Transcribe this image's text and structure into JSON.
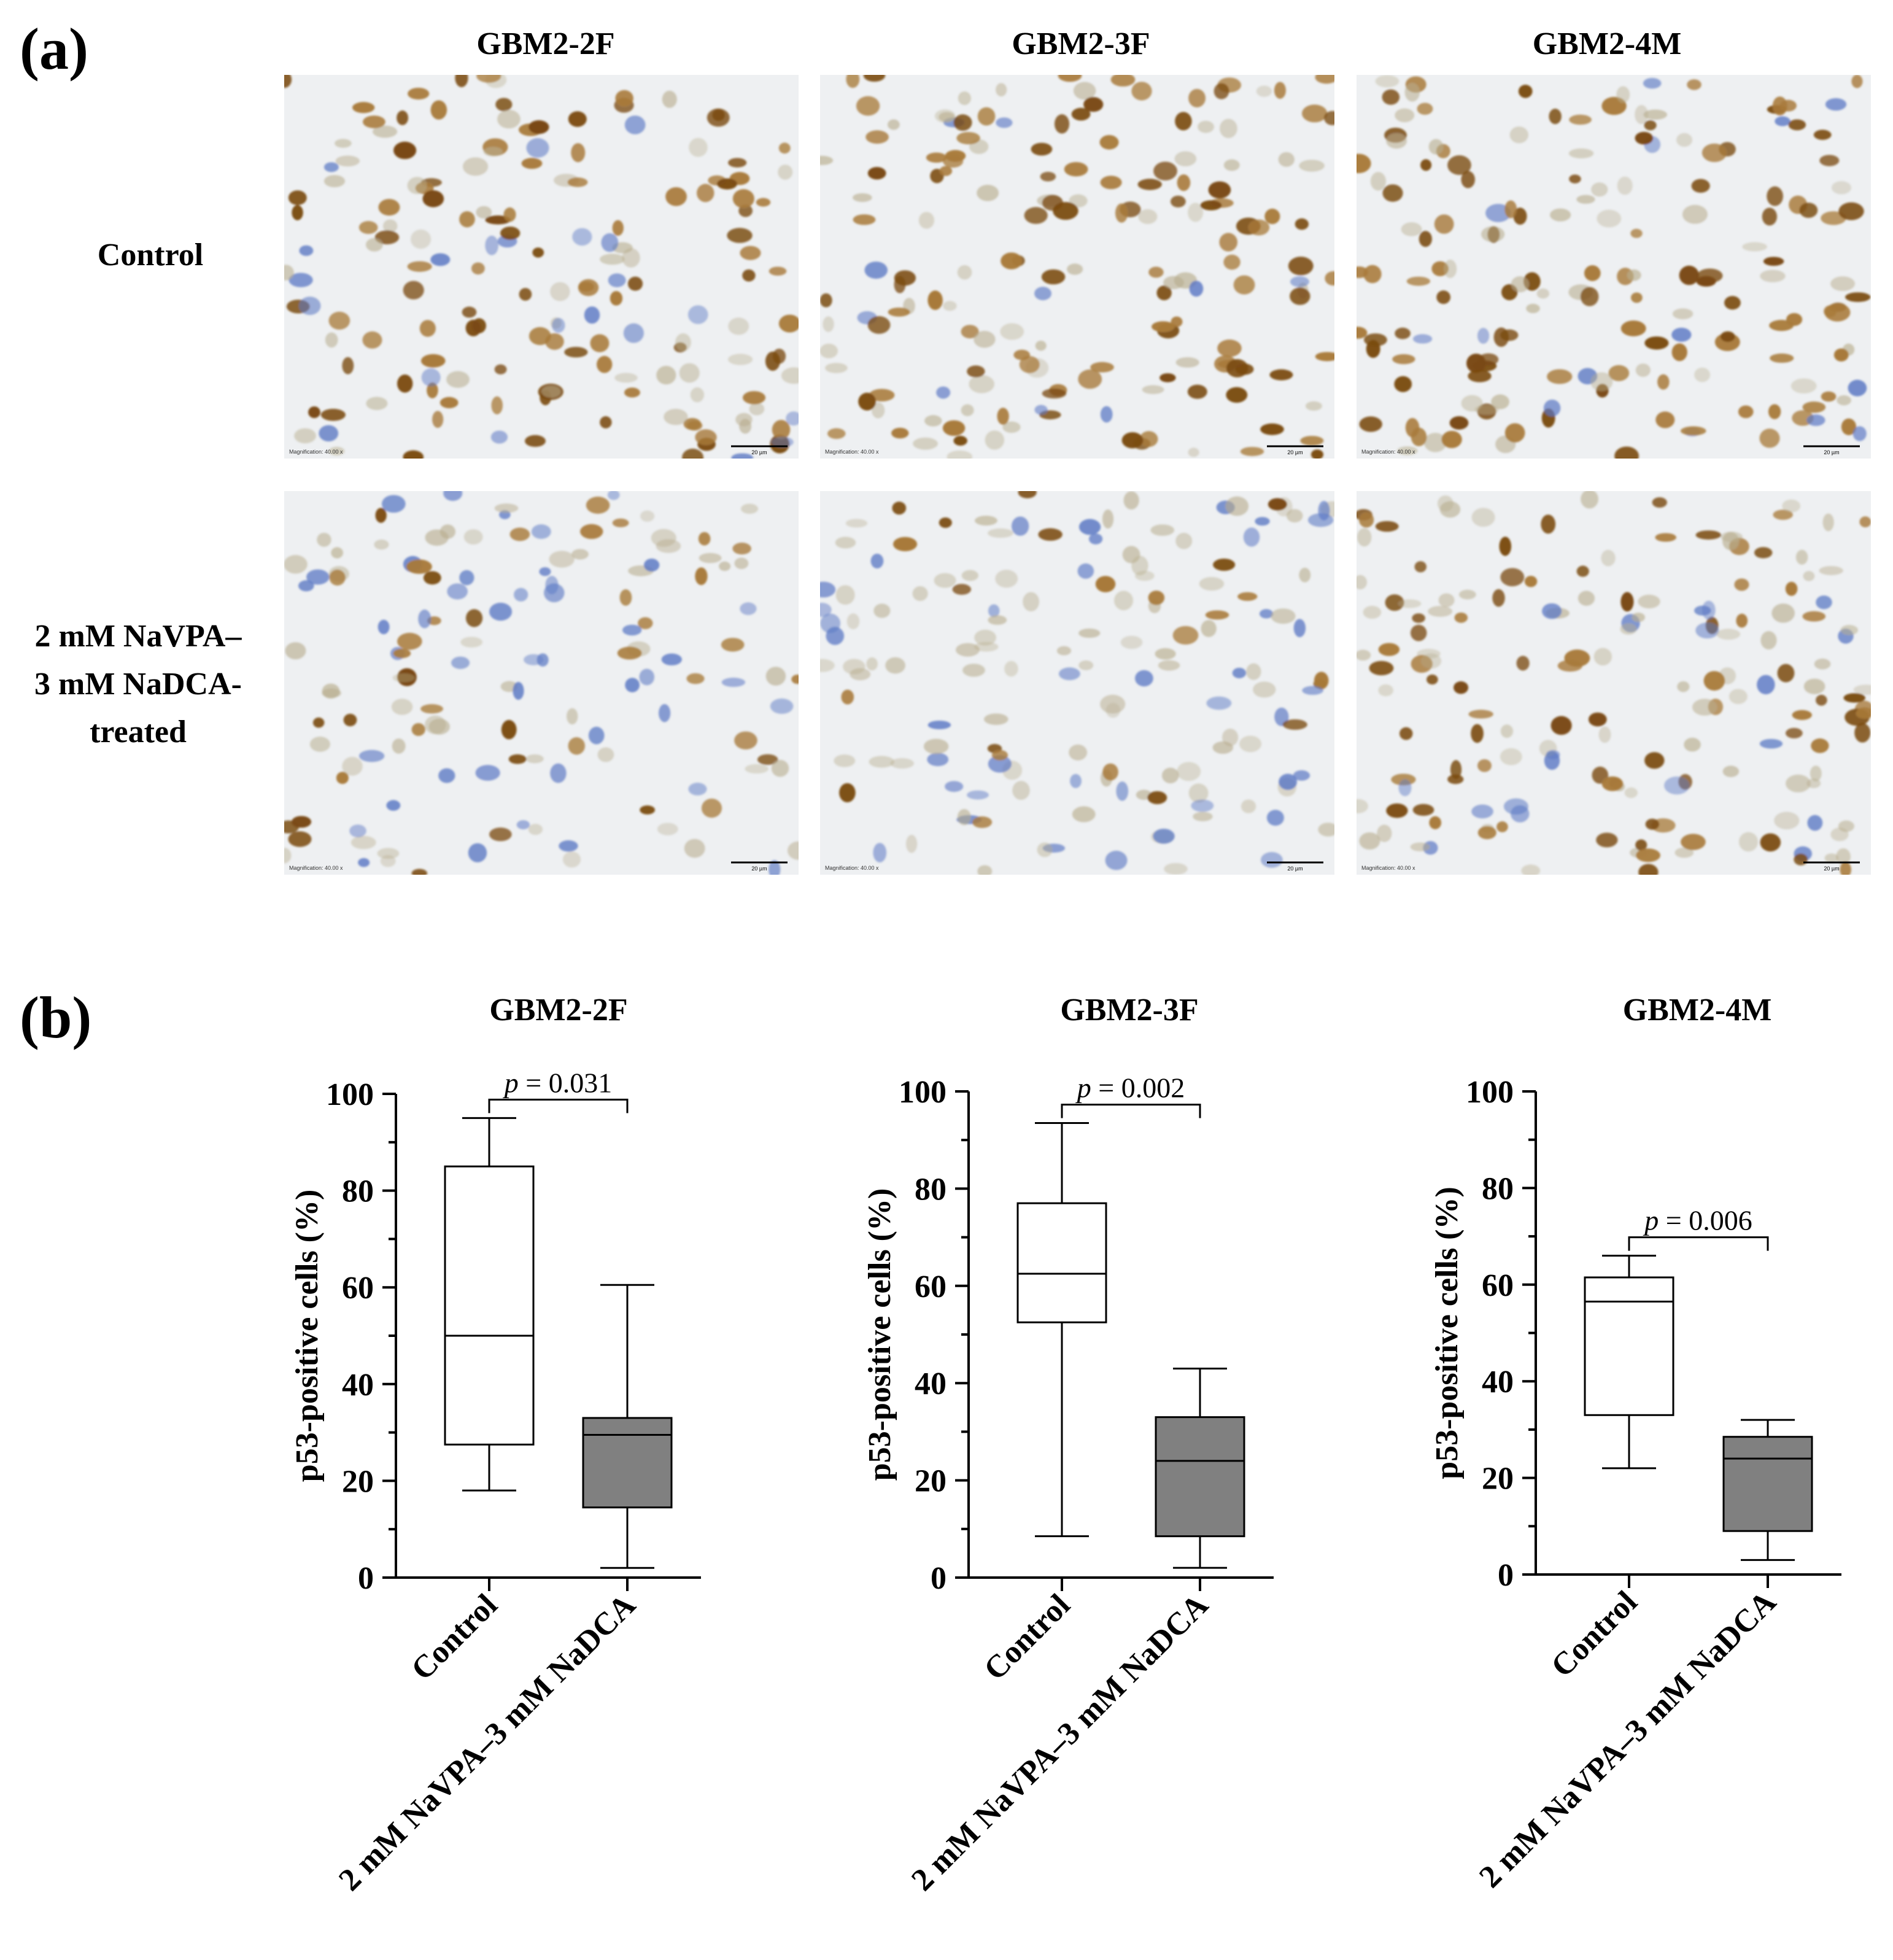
{
  "panel_a": {
    "label": "(a)",
    "columns": [
      "GBM2-2F",
      "GBM2-3F",
      "GBM2-4M"
    ],
    "rows": [
      {
        "lines": [
          "Control"
        ]
      },
      {
        "lines": [
          "2 mM NaVPA–",
          "3 mM NaDCA-",
          "treated"
        ]
      }
    ],
    "micrographs": [
      {
        "magnification": "Magnification: 40.00 x",
        "scalebar": "20 µm",
        "staining": "heavy"
      },
      {
        "magnification": "Magnification: 40.00 x",
        "scalebar": "20 µm",
        "staining": "heavy"
      },
      {
        "magnification": "Magnification: 40.00 x",
        "scalebar": "20 µm",
        "staining": "heavy"
      },
      {
        "magnification": "Magnification: 40.00 x",
        "scalebar": "20 µm",
        "staining": "light-blue"
      },
      {
        "magnification": "Magnification: 40.00 x",
        "scalebar": "20 µm",
        "staining": "faint"
      },
      {
        "magnification": "Magnification: 40.00 x",
        "scalebar": "20 µm",
        "staining": "medium"
      }
    ],
    "colors": {
      "background": "#eef0f2",
      "brown": "#7a4a12",
      "blue": "#5b78c4"
    }
  },
  "panel_b": {
    "label": "(b)"
  },
  "chart_data": [
    {
      "type": "box",
      "title": "GBM2-2F",
      "ylabel": "p53-positive cells (%)",
      "ylim": [
        0,
        100
      ],
      "yticks": [
        "0",
        "20",
        "40",
        "60",
        "80",
        "100"
      ],
      "categories": [
        "Control",
        "2 mM NaVPA–3 mM NaDCA"
      ],
      "boxes": [
        {
          "min": 18,
          "q1": 27.5,
          "median": 50,
          "q3": 85,
          "max": 95,
          "fill": "#ffffff"
        },
        {
          "min": 2,
          "q1": 14.5,
          "median": 29.5,
          "q3": 33,
          "max": 60.5,
          "fill": "#808080"
        }
      ],
      "annotation": {
        "p": "p",
        "value": " = 0.031"
      }
    },
    {
      "type": "box",
      "title": "GBM2-3F",
      "ylabel": "p53-positive cells (%)",
      "ylim": [
        0,
        100
      ],
      "yticks": [
        "0",
        "20",
        "40",
        "60",
        "80",
        "100"
      ],
      "categories": [
        "Control",
        "2 mM NaVPA–3 mM NaDCA"
      ],
      "boxes": [
        {
          "min": 8.5,
          "q1": 52.5,
          "median": 62.5,
          "q3": 77,
          "max": 93.5,
          "fill": "#ffffff"
        },
        {
          "min": 2,
          "q1": 8.5,
          "median": 24,
          "q3": 33,
          "max": 43,
          "fill": "#808080"
        }
      ],
      "annotation": {
        "p": "p",
        "value": " = 0.002"
      }
    },
    {
      "type": "box",
      "title": "GBM2-4M",
      "ylabel": "p53-positive cells (%)",
      "ylim": [
        0,
        100
      ],
      "yticks": [
        "0",
        "20",
        "40",
        "60",
        "80",
        "100"
      ],
      "categories": [
        "Control",
        "2 mM NaVPA–3 mM NaDCA"
      ],
      "boxes": [
        {
          "min": 22,
          "q1": 33,
          "median": 56.5,
          "q3": 61.5,
          "max": 66,
          "fill": "#ffffff"
        },
        {
          "min": 3,
          "q1": 9,
          "median": 24,
          "q3": 28.5,
          "max": 32,
          "fill": "#808080"
        }
      ],
      "annotation": {
        "p": "p",
        "value": " = 0.006"
      }
    }
  ]
}
